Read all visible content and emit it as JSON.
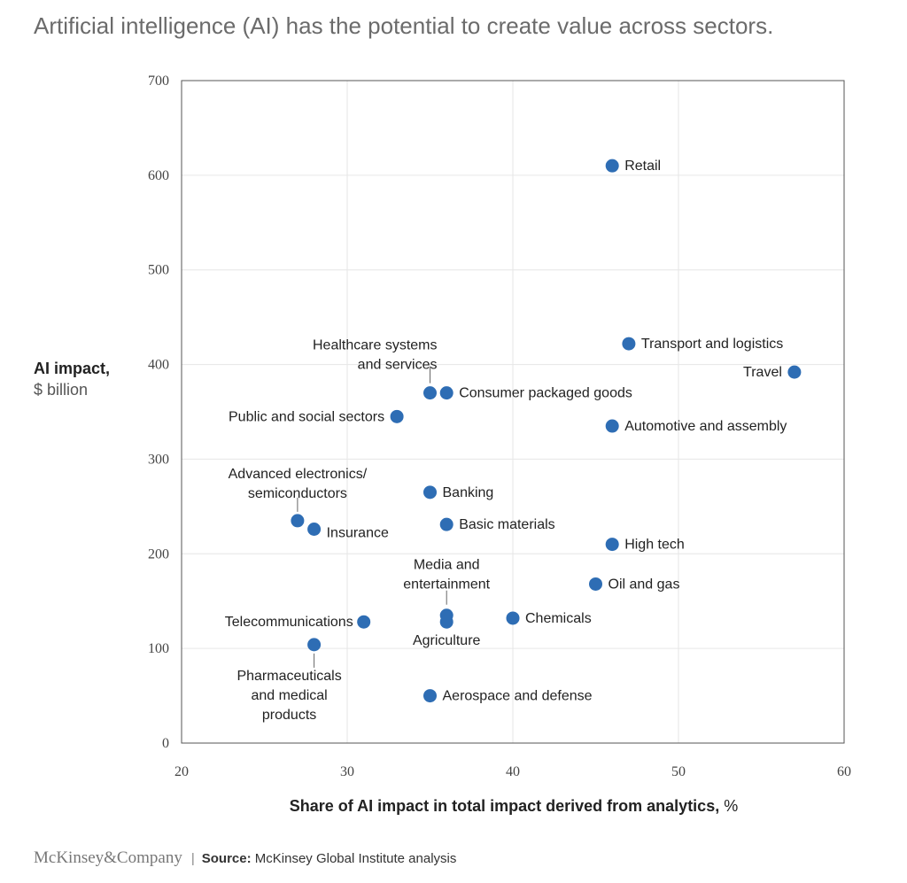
{
  "title": "Artificial intelligence (AI) has the potential to create value across sectors.",
  "chart_data": {
    "type": "scatter",
    "title": "Artificial intelligence (AI) has the potential to create value across sectors.",
    "ylabel": "AI impact,",
    "ylabel_unit": "$ billion",
    "xlabel": "Share of AI impact in total impact derived from analytics,",
    "xlabel_unit": "%",
    "xlim": [
      20,
      60
    ],
    "ylim": [
      0,
      700
    ],
    "xticks": [
      20,
      30,
      40,
      50,
      60
    ],
    "yticks": [
      0,
      100,
      200,
      300,
      400,
      500,
      600,
      700
    ],
    "grid": true,
    "marker_color": "#2e6db4",
    "points": [
      {
        "label": "Retail",
        "x": 46,
        "y": 610
      },
      {
        "label": "Transport and logistics",
        "x": 47,
        "y": 422
      },
      {
        "label": "Travel",
        "x": 57,
        "y": 392
      },
      {
        "label": "Healthcare systems and services",
        "x": 35,
        "y": 370
      },
      {
        "label": "Consumer packaged goods",
        "x": 36,
        "y": 370
      },
      {
        "label": "Public and social sectors",
        "x": 33,
        "y": 345
      },
      {
        "label": "Automotive and assembly",
        "x": 46,
        "y": 335
      },
      {
        "label": "Banking",
        "x": 35,
        "y": 265
      },
      {
        "label": "Advanced electronics/ semiconductors",
        "x": 27,
        "y": 235
      },
      {
        "label": "Insurance",
        "x": 28,
        "y": 226
      },
      {
        "label": "Basic materials",
        "x": 36,
        "y": 231
      },
      {
        "label": "High tech",
        "x": 46,
        "y": 210
      },
      {
        "label": "Oil and gas",
        "x": 45,
        "y": 168
      },
      {
        "label": "Media and entertainment",
        "x": 36,
        "y": 135
      },
      {
        "label": "Agriculture",
        "x": 36,
        "y": 128
      },
      {
        "label": "Chemicals",
        "x": 40,
        "y": 132
      },
      {
        "label": "Telecommunications",
        "x": 31,
        "y": 128
      },
      {
        "label": "Pharmaceuticals and medical products",
        "x": 28,
        "y": 104
      },
      {
        "label": "Aerospace and defense",
        "x": 35,
        "y": 50
      }
    ]
  },
  "footer": {
    "brand": "McKinsey&Company",
    "separator": "|",
    "source_label": "Source:",
    "source_text": "McKinsey Global Institute analysis"
  }
}
